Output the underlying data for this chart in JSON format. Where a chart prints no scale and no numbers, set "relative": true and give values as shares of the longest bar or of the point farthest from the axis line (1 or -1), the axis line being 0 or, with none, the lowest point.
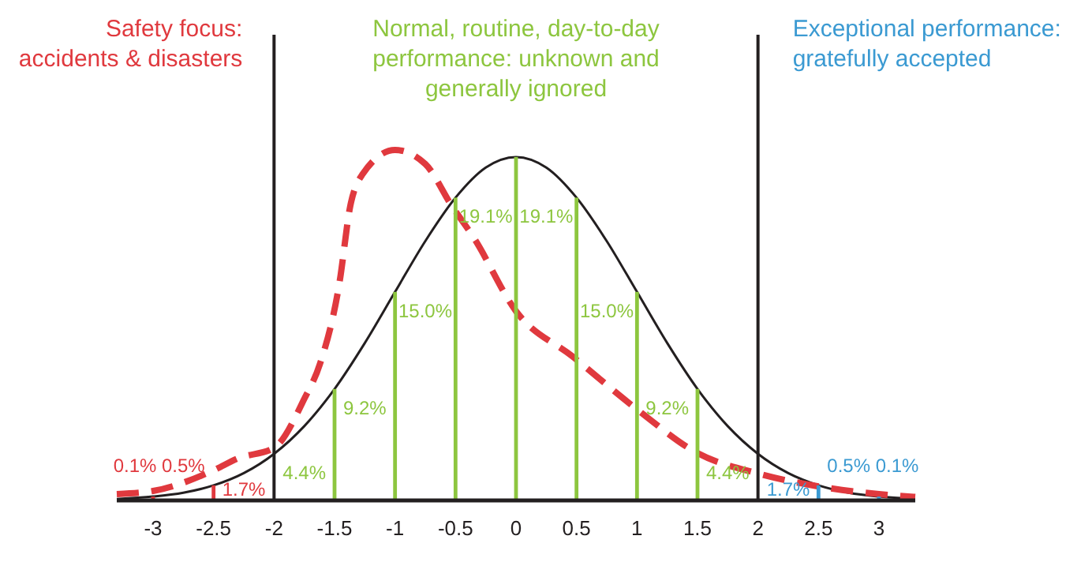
{
  "chart_data": {
    "type": "line",
    "relative": true,
    "xlim": [
      -3.3,
      3.3
    ],
    "xticks": [
      -3,
      -2.5,
      -2,
      -1.5,
      -1,
      -0.5,
      0,
      0.5,
      1,
      1.5,
      2,
      2.5,
      3
    ],
    "series": [
      {
        "color": "#231f20",
        "line_style": "solid",
        "x": [
          -3.3,
          -3,
          -2.75,
          -2.5,
          -2.25,
          -2,
          -1.75,
          -1.5,
          -1.25,
          -1,
          -0.75,
          -0.5,
          -0.25,
          0,
          0.25,
          0.5,
          0.75,
          1,
          1.25,
          1.5,
          1.75,
          2,
          2.25,
          2.5,
          2.75,
          3,
          3.3
        ],
        "values": [
          0.004,
          0.011,
          0.022,
          0.043,
          0.078,
          0.133,
          0.212,
          0.318,
          0.449,
          0.595,
          0.74,
          0.864,
          0.95,
          0.98,
          0.95,
          0.864,
          0.74,
          0.595,
          0.449,
          0.318,
          0.212,
          0.133,
          0.078,
          0.043,
          0.022,
          0.011,
          0.004
        ]
      },
      {
        "color": "#e0393e",
        "line_style": "dashed",
        "x": [
          -3.3,
          -3,
          -2.5,
          -2.3,
          -2,
          -1.75,
          -1.62,
          -1.46,
          -1.37,
          -1.27,
          -1,
          -0.75,
          -0.53,
          -0.35,
          0,
          0.47,
          1,
          1.5,
          2,
          2.5,
          3,
          3.3
        ],
        "values": [
          0.018,
          0.027,
          0.086,
          0.12,
          0.15,
          0.29,
          0.39,
          0.62,
          0.84,
          0.93,
          1,
          0.96,
          0.84,
          0.75,
          0.54,
          0.41,
          0.26,
          0.135,
          0.077,
          0.04,
          0.018,
          0.01
        ]
      },
      {
        "type": "bar",
        "x": [
          -3,
          -2.5,
          -1.5,
          -1,
          -0.5,
          0,
          0.5,
          1,
          1.5,
          2.5,
          3
        ],
        "values": [
          0.011,
          0.043,
          0.318,
          0.595,
          0.864,
          0.98,
          0.864,
          0.595,
          0.318,
          0.043,
          0.011
        ],
        "colors": [
          "#e0393e",
          "#e0393e",
          "#8dc63f",
          "#8dc63f",
          "#8dc63f",
          "#8dc63f",
          "#8dc63f",
          "#8dc63f",
          "#8dc63f",
          "#3b9ad2",
          "#3b9ad2"
        ]
      }
    ],
    "ref_lines": [
      {
        "axis": "x",
        "value": -2,
        "color": "#231f20"
      },
      {
        "axis": "x",
        "value": 2,
        "color": "#231f20"
      }
    ],
    "annotations": [
      "Safety focus:\naccidents & disasters",
      "Normal, routine, day-to-day\nperformance: unknown and\ngenerally ignored",
      "Exceptional performance:\ngratefully accepted",
      "0.1%",
      "0.5%",
      "1.7%",
      "4.4%",
      "9.2%",
      "15.0%",
      "19.1%",
      "19.1%",
      "15.0%",
      "9.2%",
      "4.4%",
      "1.7%",
      "0.5%",
      "0.1%"
    ]
  }
}
